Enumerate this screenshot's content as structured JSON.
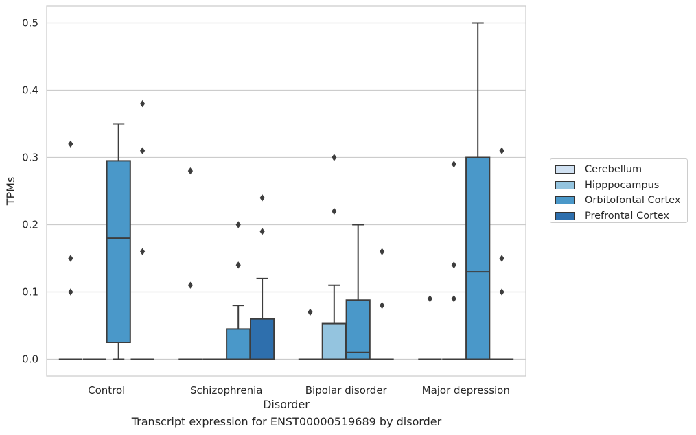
{
  "chart_data": {
    "type": "box",
    "xlabel": "Disorder",
    "ylabel": "TPMs",
    "caption": "Transcript expression for ENST00000519689 by disorder",
    "categories": [
      "Control",
      "Schizophrenia",
      "Bipolar disorder",
      "Major depression"
    ],
    "hue_order": [
      "Cerebellum",
      "Hipppocampus",
      "Orbitofontal Cortex",
      "Prefrontal Cortex"
    ],
    "hue_colors": [
      "#d0e1f2",
      "#94c4df",
      "#4a98c9",
      "#2e6fad"
    ],
    "ylim": [
      -0.025,
      0.525
    ],
    "yticks": [
      0.0,
      0.1,
      0.2,
      0.3,
      0.4,
      0.5
    ],
    "ytick_labels": [
      "0.0",
      "0.1",
      "0.2",
      "0.3",
      "0.4",
      "0.5"
    ],
    "grid": true,
    "legend_position": "right",
    "boxes": [
      {
        "category": "Control",
        "hue": "Cerebellum",
        "q1": 0,
        "median": 0,
        "q3": 0,
        "whisker_low": 0,
        "whisker_high": 0,
        "outliers": [
          0.1,
          0.15,
          0.32
        ]
      },
      {
        "category": "Control",
        "hue": "Hipppocampus",
        "q1": 0,
        "median": 0,
        "q3": 0,
        "whisker_low": 0,
        "whisker_high": 0,
        "outliers": []
      },
      {
        "category": "Control",
        "hue": "Orbitofontal Cortex",
        "q1": 0.025,
        "median": 0.18,
        "q3": 0.295,
        "whisker_low": 0,
        "whisker_high": 0.35,
        "outliers": []
      },
      {
        "category": "Control",
        "hue": "Prefrontal Cortex",
        "q1": 0,
        "median": 0,
        "q3": 0,
        "whisker_low": 0,
        "whisker_high": 0,
        "outliers": [
          0.16,
          0.31,
          0.38
        ]
      },
      {
        "category": "Schizophrenia",
        "hue": "Cerebellum",
        "q1": 0,
        "median": 0,
        "q3": 0,
        "whisker_low": 0,
        "whisker_high": 0,
        "outliers": [
          0.11,
          0.28
        ]
      },
      {
        "category": "Schizophrenia",
        "hue": "Hipppocampus",
        "q1": 0,
        "median": 0,
        "q3": 0,
        "whisker_low": 0,
        "whisker_high": 0,
        "outliers": []
      },
      {
        "category": "Schizophrenia",
        "hue": "Orbitofontal Cortex",
        "q1": 0,
        "median": 0,
        "q3": 0.045,
        "whisker_low": 0,
        "whisker_high": 0.08,
        "outliers": [
          0.14,
          0.2
        ]
      },
      {
        "category": "Schizophrenia",
        "hue": "Prefrontal Cortex",
        "q1": 0,
        "median": 0,
        "q3": 0.06,
        "whisker_low": 0,
        "whisker_high": 0.12,
        "outliers": [
          0.19,
          0.24
        ]
      },
      {
        "category": "Bipolar disorder",
        "hue": "Cerebellum",
        "q1": 0,
        "median": 0,
        "q3": 0,
        "whisker_low": 0,
        "whisker_high": 0,
        "outliers": [
          0.07
        ]
      },
      {
        "category": "Bipolar disorder",
        "hue": "Hipppocampus",
        "q1": 0,
        "median": 0,
        "q3": 0.053,
        "whisker_low": 0,
        "whisker_high": 0.11,
        "outliers": [
          0.22,
          0.3
        ]
      },
      {
        "category": "Bipolar disorder",
        "hue": "Orbitofontal Cortex",
        "q1": 0,
        "median": 0.01,
        "q3": 0.088,
        "whisker_low": 0,
        "whisker_high": 0.2,
        "outliers": []
      },
      {
        "category": "Bipolar disorder",
        "hue": "Prefrontal Cortex",
        "q1": 0,
        "median": 0,
        "q3": 0,
        "whisker_low": 0,
        "whisker_high": 0,
        "outliers": [
          0.08,
          0.16
        ]
      },
      {
        "category": "Major depression",
        "hue": "Cerebellum",
        "q1": 0,
        "median": 0,
        "q3": 0,
        "whisker_low": 0,
        "whisker_high": 0,
        "outliers": [
          0.09
        ]
      },
      {
        "category": "Major depression",
        "hue": "Hipppocampus",
        "q1": 0,
        "median": 0,
        "q3": 0,
        "whisker_low": 0,
        "whisker_high": 0,
        "outliers": [
          0.09,
          0.14,
          0.29
        ]
      },
      {
        "category": "Major depression",
        "hue": "Orbitofontal Cortex",
        "q1": 0,
        "median": 0.13,
        "q3": 0.3,
        "whisker_low": 0,
        "whisker_high": 0.5,
        "outliers": []
      },
      {
        "category": "Major depression",
        "hue": "Prefrontal Cortex",
        "q1": 0,
        "median": 0,
        "q3": 0,
        "whisker_low": 0,
        "whisker_high": 0,
        "outliers": [
          0.1,
          0.15,
          0.31
        ]
      }
    ]
  }
}
